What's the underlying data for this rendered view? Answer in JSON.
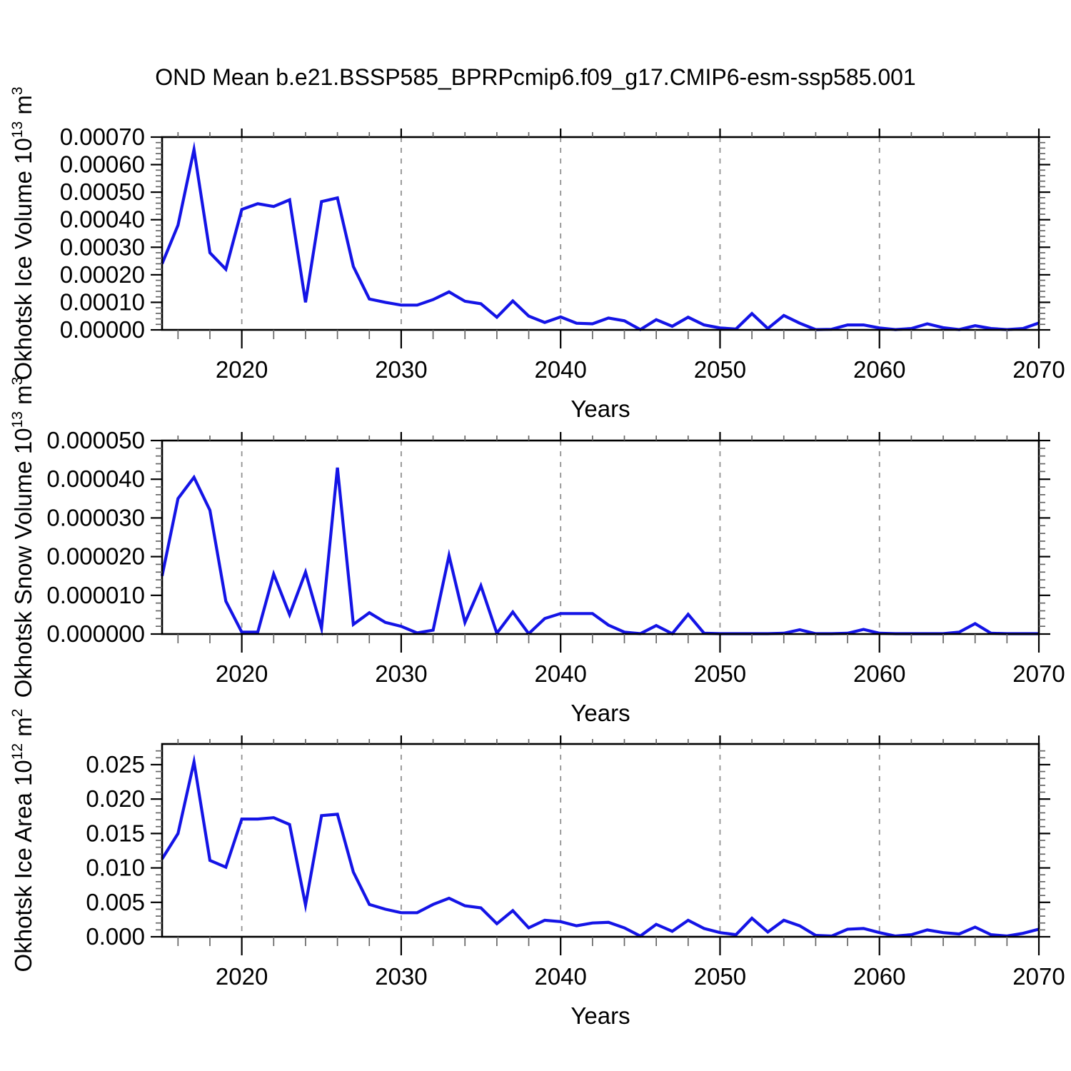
{
  "title": "OND Mean b.e21.BSSP585_BPRPcmip6.f09_g17.CMIP6-esm-ssp585.001",
  "figure": {
    "background": "#ffffff",
    "line_color": "#1414e6",
    "axis_color": "#000000",
    "grid_color": "#919191",
    "minor_tick_color": "#666666"
  },
  "x_axis": {
    "label": "Years",
    "min": 2015,
    "max": 2070,
    "major_tick_years": [
      2020,
      2030,
      2040,
      2050,
      2060,
      2070
    ],
    "minor_tick_step": 2,
    "grid_years": [
      2020,
      2030,
      2040,
      2050,
      2060
    ],
    "years": [
      2015,
      2016,
      2017,
      2018,
      2019,
      2020,
      2021,
      2022,
      2023,
      2024,
      2025,
      2026,
      2027,
      2028,
      2029,
      2030,
      2031,
      2032,
      2033,
      2034,
      2035,
      2036,
      2037,
      2038,
      2039,
      2040,
      2041,
      2042,
      2043,
      2044,
      2045,
      2046,
      2047,
      2048,
      2049,
      2050,
      2051,
      2052,
      2053,
      2054,
      2055,
      2056,
      2057,
      2058,
      2059,
      2060,
      2061,
      2062,
      2063,
      2064,
      2065,
      2066,
      2067,
      2068,
      2069,
      2070
    ]
  },
  "chart_data": [
    {
      "type": "line",
      "name": "okhotsk-ice-volume",
      "ylabel": "Okhotsk Ice Volume 10^13 m^3",
      "ylabel_segments": [
        {
          "text": "Okhotsk Ice Volume 10"
        },
        {
          "text": "13",
          "super": true
        },
        {
          "text": " m"
        },
        {
          "text": "3",
          "super": true
        }
      ],
      "xlabel": "Years",
      "ylim": [
        0,
        0.0007
      ],
      "y_tick_values": [
        0.0,
        0.0001,
        0.0002,
        0.0003,
        0.0004,
        0.0005,
        0.0006,
        0.0007
      ],
      "y_tick_labels": [
        "0.00000",
        "0.00010",
        "0.00020",
        "0.00030",
        "0.00040",
        "0.00050",
        "0.00060",
        "0.00070"
      ],
      "y_minor_step": 2e-05,
      "grid": "x-dashed",
      "legend": "none",
      "values": [
        0.00024,
        0.00038,
        0.000655,
        0.00028,
        0.00022,
        0.000437,
        0.000458,
        0.000448,
        0.000472,
        0.0001,
        0.000466,
        0.000479,
        0.00023,
        0.000112,
        0.0001,
        9e-05,
        9e-05,
        0.00011,
        0.000138,
        0.000104,
        9.5e-05,
        4.6e-05,
        0.000105,
        5e-05,
        2.7e-05,
        4.7e-05,
        2.4e-05,
        2.2e-05,
        4.3e-05,
        3.3e-05,
        1e-06,
        3.7e-05,
        1.3e-05,
        4.6e-05,
        1.8e-05,
        7e-06,
        3e-06,
        5.9e-05,
        5e-06,
        5.2e-05,
        2.4e-05,
        1e-06,
        2e-06,
        1.8e-05,
        1.8e-05,
        7e-06,
        1e-06,
        5e-06,
        2.2e-05,
        8e-06,
        1e-06,
        1.5e-05,
        5e-06,
        1e-06,
        5e-06,
        2.5e-05
      ]
    },
    {
      "type": "line",
      "name": "okhotsk-snow-volume",
      "ylabel": "Okhotsk Snow Volume 10^13 m^3",
      "ylabel_segments": [
        {
          "text": "Okhotsk Snow Volume 10"
        },
        {
          "text": "13",
          "super": true
        },
        {
          "text": " m"
        },
        {
          "text": "3",
          "super": true
        }
      ],
      "xlabel": "Years",
      "ylim": [
        0,
        5e-05
      ],
      "y_tick_values": [
        0.0,
        1e-05,
        2e-05,
        3e-05,
        4e-05,
        5e-05
      ],
      "y_tick_labels": [
        "0.000000",
        "0.000010",
        "0.000020",
        "0.000030",
        "0.000040",
        "0.000050"
      ],
      "y_minor_step": 2e-06,
      "grid": "x-dashed",
      "legend": "none",
      "values": [
        1.5e-05,
        3.5e-05,
        4.05e-05,
        3.2e-05,
        8.5e-06,
        5e-07,
        5e-07,
        1.55e-05,
        5e-06,
        1.6e-05,
        1.5e-06,
        4.3e-05,
        2.5e-06,
        5.5e-06,
        3e-06,
        2e-06,
        3e-07,
        1e-06,
        2.03e-05,
        3e-06,
        1.25e-05,
        2e-07,
        5.7e-06,
        1e-07,
        4e-06,
        5.3e-06,
        5.3e-06,
        5.3e-06,
        2.3e-06,
        5e-07,
        1e-07,
        2.2e-06,
        1e-07,
        5.1e-06,
        2e-07,
        1e-07,
        1e-07,
        1e-07,
        1e-07,
        2e-07,
        1.1e-06,
        1e-07,
        1e-07,
        2e-07,
        1.2e-06,
        2e-07,
        1e-07,
        1e-07,
        1e-07,
        1e-07,
        5e-07,
        2.7e-06,
        2e-07,
        1e-07,
        1e-07,
        1e-07
      ]
    },
    {
      "type": "line",
      "name": "okhotsk-ice-area",
      "ylabel": "Okhotsk Ice Area 10^12 m^2",
      "ylabel_segments": [
        {
          "text": "Okhotsk Ice Area 10"
        },
        {
          "text": "12",
          "super": true
        },
        {
          "text": " m"
        },
        {
          "text": "2",
          "super": true
        }
      ],
      "xlabel": "Years",
      "ylim": [
        0,
        0.028
      ],
      "y_tick_values": [
        0.0,
        0.005,
        0.01,
        0.015,
        0.02,
        0.025
      ],
      "y_tick_labels": [
        "0.000",
        "0.005",
        "0.010",
        "0.015",
        "0.020",
        "0.025"
      ],
      "y_minor_step": 0.001,
      "grid": "x-dashed",
      "legend": "none",
      "values": [
        0.0113,
        0.015,
        0.0254,
        0.0111,
        0.0101,
        0.0171,
        0.0171,
        0.0173,
        0.0163,
        0.0046,
        0.0176,
        0.0178,
        0.0094,
        0.0047,
        0.004,
        0.0035,
        0.0035,
        0.0047,
        0.0056,
        0.0045,
        0.0042,
        0.0019,
        0.0038,
        0.0013,
        0.0024,
        0.0022,
        0.0016,
        0.002,
        0.0021,
        0.0013,
        0.0001,
        0.0018,
        0.0008,
        0.0024,
        0.0012,
        0.0006,
        0.0003,
        0.0027,
        0.0007,
        0.0024,
        0.0016,
        0.0002,
        0.0001,
        0.0011,
        0.0012,
        0.0006,
        0.0001,
        0.0003,
        0.001,
        0.0006,
        0.0004,
        0.0014,
        0.0003,
        0.0001,
        0.0005,
        0.0011
      ]
    }
  ]
}
